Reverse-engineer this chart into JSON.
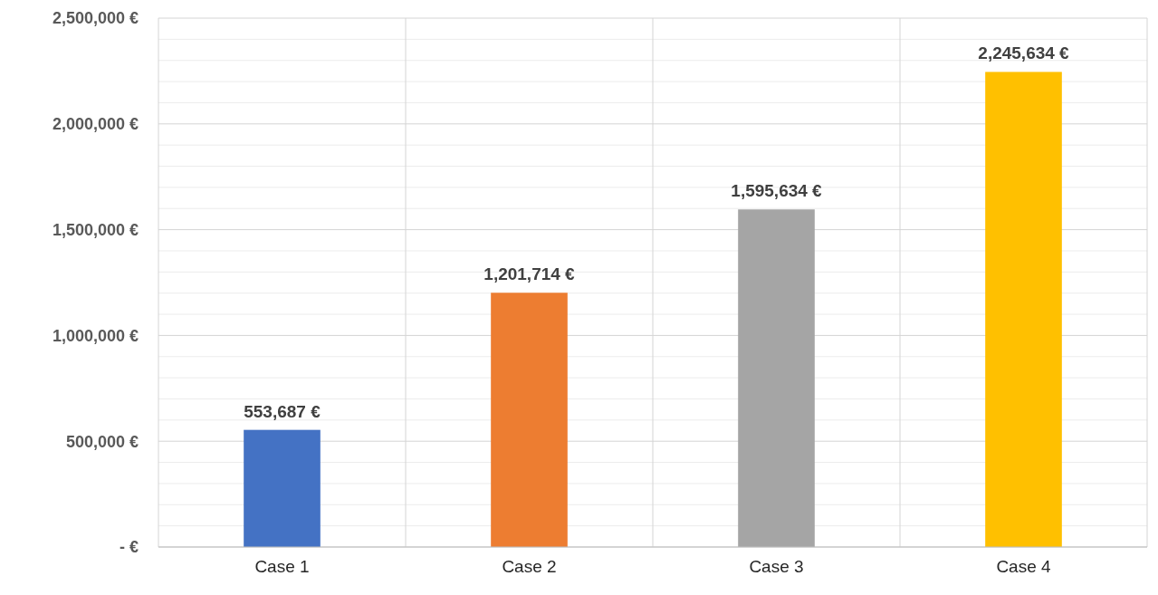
{
  "chart_data": {
    "type": "bar",
    "categories": [
      "Case 1",
      "Case 2",
      "Case 3",
      "Case 4"
    ],
    "values": [
      553687,
      1201714,
      1595634,
      2245634
    ],
    "colors": [
      "#4472c4",
      "#ed7d31",
      "#a5a5a5",
      "#ffc000"
    ],
    "value_labels": [
      "553,687 €",
      "1,201,714 €",
      "1,595,634 €",
      "2,245,634 €"
    ],
    "ylim": [
      0,
      2500000
    ],
    "yticks": [
      {
        "value": 0,
        "label": "-  €"
      },
      {
        "value": 100000,
        "label": null
      },
      {
        "value": 200000,
        "label": null
      },
      {
        "value": 300000,
        "label": null
      },
      {
        "value": 400000,
        "label": null
      },
      {
        "value": 500000,
        "label": "500,000 €"
      },
      {
        "value": 600000,
        "label": null
      },
      {
        "value": 700000,
        "label": null
      },
      {
        "value": 800000,
        "label": null
      },
      {
        "value": 900000,
        "label": null
      },
      {
        "value": 1000000,
        "label": "1,000,000 €"
      },
      {
        "value": 1100000,
        "label": null
      },
      {
        "value": 1200000,
        "label": null
      },
      {
        "value": 1300000,
        "label": null
      },
      {
        "value": 1400000,
        "label": null
      },
      {
        "value": 1500000,
        "label": "1,500,000 €"
      },
      {
        "value": 1600000,
        "label": null
      },
      {
        "value": 1700000,
        "label": null
      },
      {
        "value": 1800000,
        "label": null
      },
      {
        "value": 1900000,
        "label": null
      },
      {
        "value": 2000000,
        "label": "2,000,000 €"
      },
      {
        "value": 2100000,
        "label": null
      },
      {
        "value": 2200000,
        "label": null
      },
      {
        "value": 2300000,
        "label": null
      },
      {
        "value": 2400000,
        "label": null
      },
      {
        "value": 2500000,
        "label": "2,500,000 €"
      }
    ],
    "grid": true
  }
}
